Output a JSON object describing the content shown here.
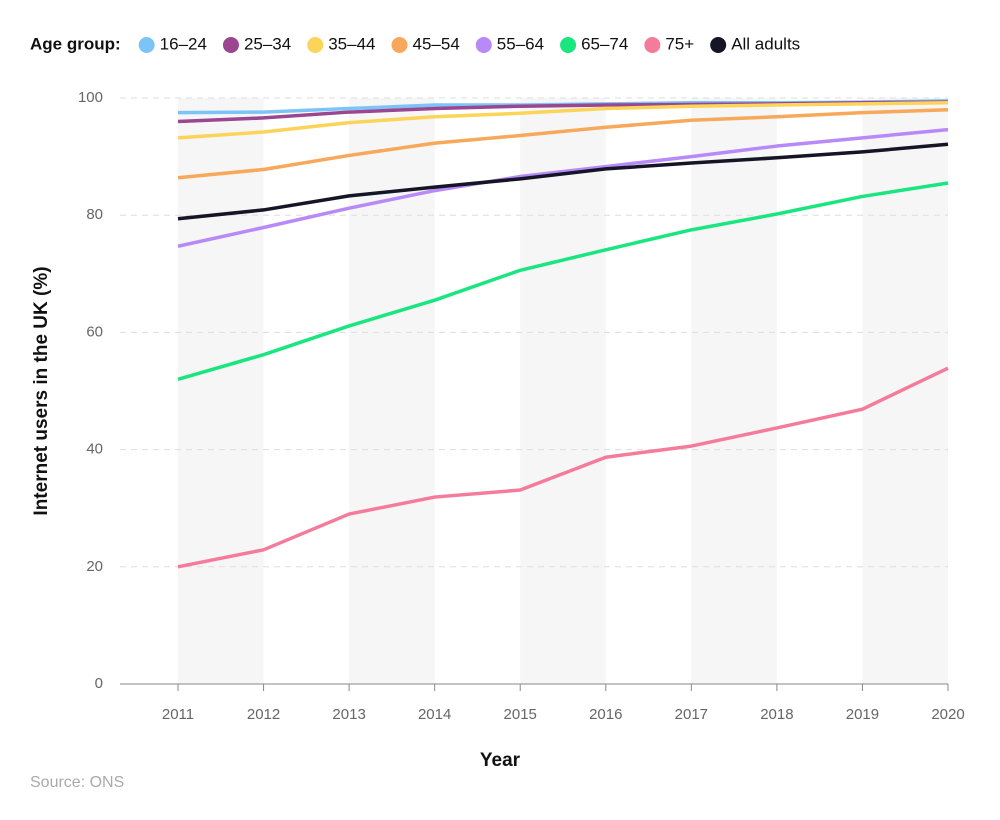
{
  "chart_data": {
    "type": "line",
    "legend_title": "Age group:",
    "y_label": "Internet users in the UK (%)",
    "x_label": "Year",
    "source": "Source: ONS",
    "x": [
      2011,
      2012,
      2013,
      2014,
      2015,
      2016,
      2017,
      2018,
      2019,
      2020
    ],
    "xlim": [
      2011,
      2020
    ],
    "xticks": [
      2011,
      2012,
      2013,
      2014,
      2015,
      2016,
      2017,
      2018,
      2019,
      2020
    ],
    "ylim": [
      0,
      100
    ],
    "yticks": [
      0,
      20,
      40,
      60,
      80,
      100
    ],
    "grid": true,
    "series": [
      {
        "name": "16–24",
        "color": "#7cc4f8",
        "values": [
          97.5,
          97.6,
          98.2,
          98.8,
          98.8,
          99.0,
          99.2,
          99.2,
          99.3,
          99.5
        ]
      },
      {
        "name": "25–34",
        "color": "#9b4690",
        "values": [
          96.0,
          96.6,
          97.6,
          98.2,
          98.6,
          98.8,
          98.9,
          99.0,
          99.2,
          99.3
        ]
      },
      {
        "name": "35–44",
        "color": "#fcd45a",
        "values": [
          93.2,
          94.2,
          95.8,
          96.8,
          97.4,
          98.2,
          98.6,
          98.8,
          99.0,
          99.2
        ]
      },
      {
        "name": "45–54",
        "color": "#f7a85a",
        "values": [
          86.4,
          87.8,
          90.2,
          92.3,
          93.6,
          95.0,
          96.2,
          96.8,
          97.5,
          98.0
        ]
      },
      {
        "name": "55–64",
        "color": "#b78af7",
        "values": [
          74.7,
          77.9,
          81.2,
          84.2,
          86.6,
          88.3,
          90.0,
          91.8,
          93.2,
          94.6
        ]
      },
      {
        "name": "65–74",
        "color": "#19e67f",
        "values": [
          52.0,
          56.2,
          61.1,
          65.5,
          70.6,
          74.1,
          77.5,
          80.2,
          83.2,
          85.5
        ]
      },
      {
        "name": "75+",
        "color": "#f47c9a",
        "values": [
          20.0,
          22.9,
          29.0,
          31.9,
          33.1,
          38.7,
          40.6,
          43.7,
          46.9,
          53.9
        ]
      },
      {
        "name": "All adults",
        "color": "#141526",
        "values": [
          79.4,
          80.9,
          83.3,
          84.8,
          86.2,
          87.9,
          88.9,
          89.8,
          90.8,
          92.1
        ]
      }
    ]
  }
}
